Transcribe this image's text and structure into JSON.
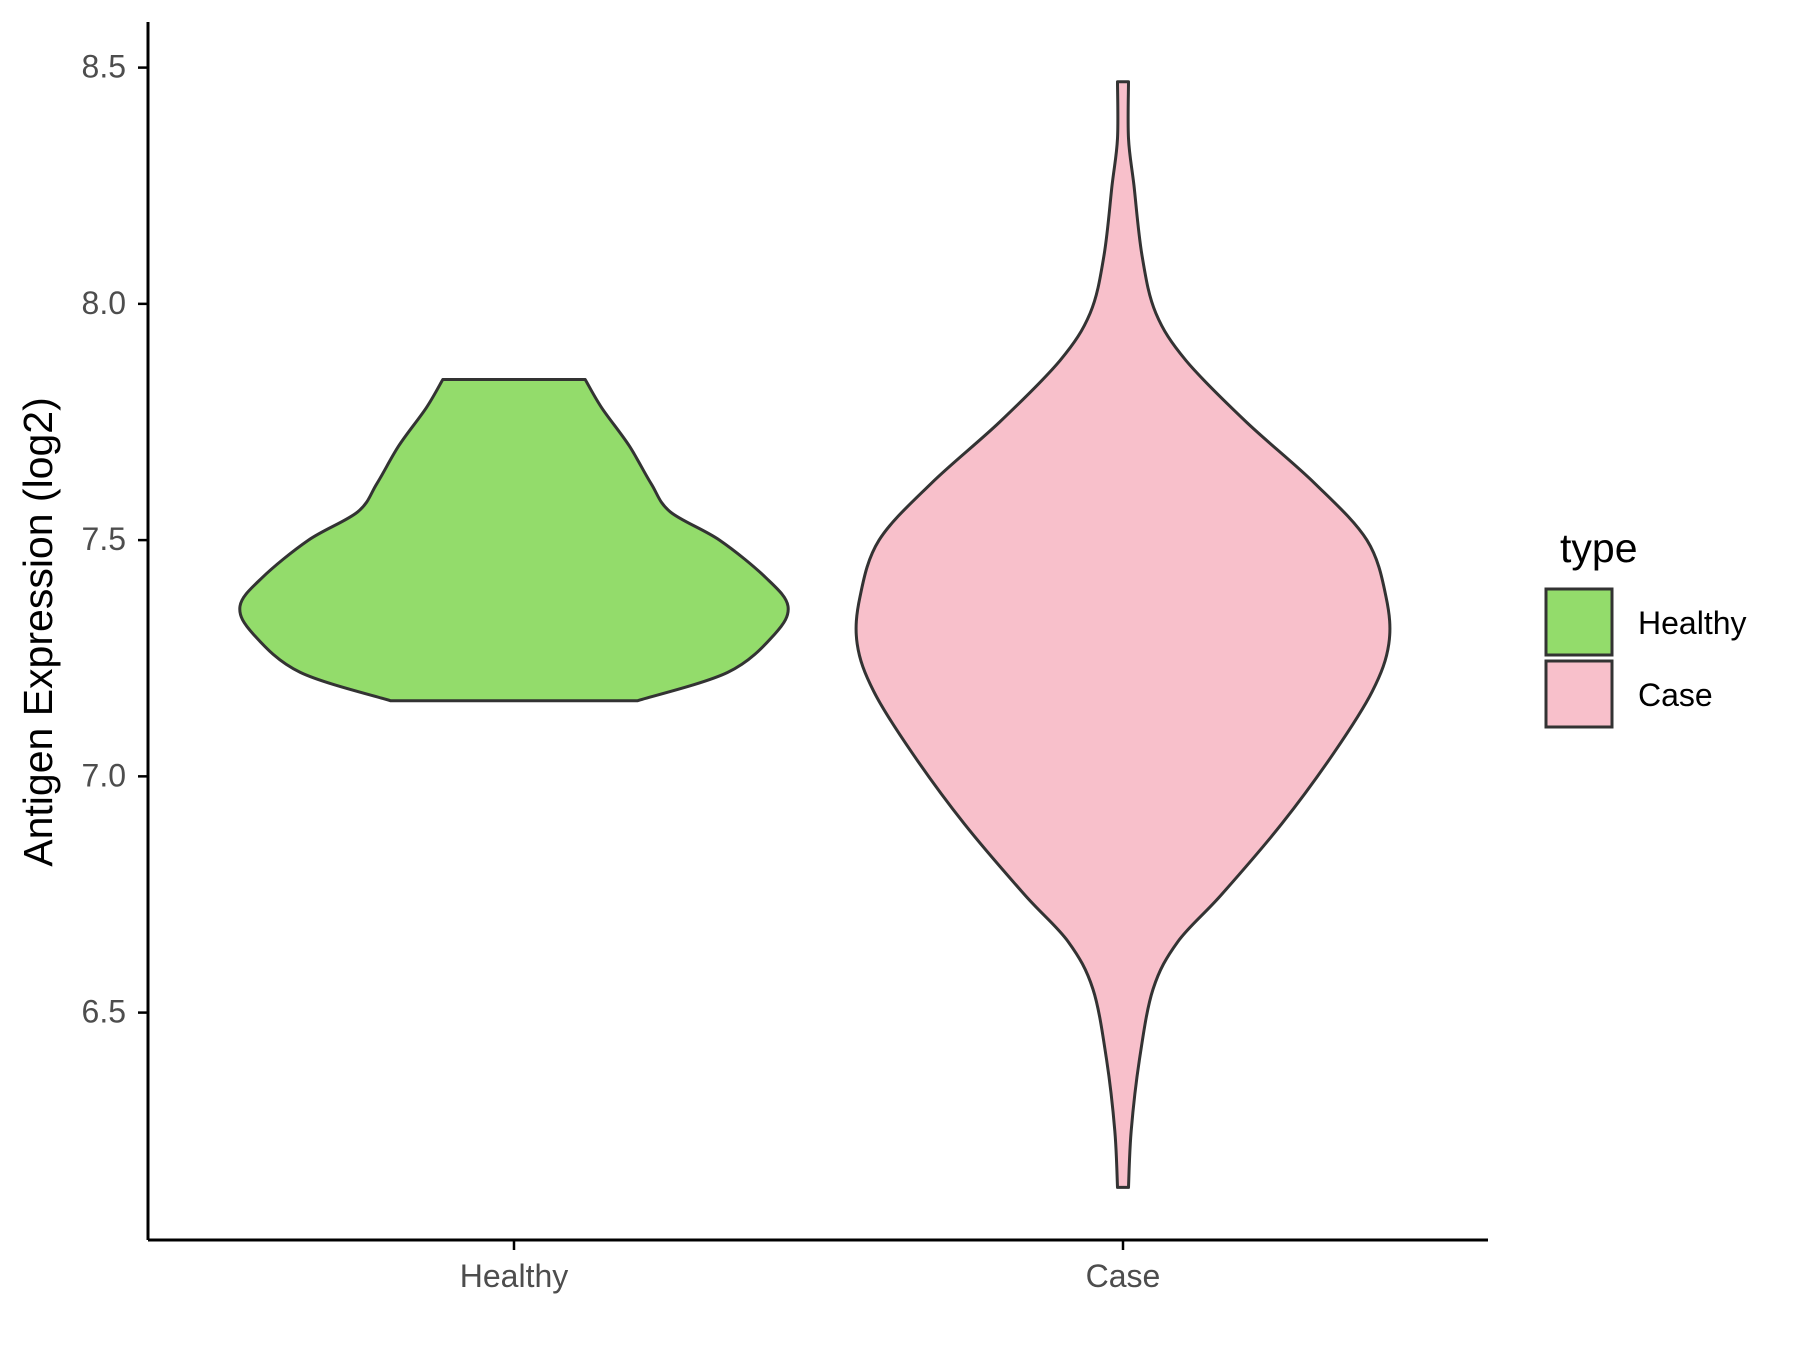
{
  "chart_data": {
    "type": "violin",
    "ylabel": "Antigen Expression (log2)",
    "xlabel": "",
    "ylim": [
      6.03,
      8.59
    ],
    "yticks": [
      6.5,
      7.0,
      7.5,
      8.0,
      8.5
    ],
    "ytick_labels": [
      "6.5",
      "7.0",
      "7.5",
      "8.0",
      "8.5"
    ],
    "categories": [
      "Healthy",
      "Case"
    ],
    "grid": false,
    "legend": {
      "title": "type",
      "position": "right",
      "items": [
        "Healthy",
        "Case"
      ]
    },
    "series": [
      {
        "name": "Healthy",
        "color": "#93dc6b",
        "min": 7.16,
        "max": 7.84,
        "density_profile": [
          [
            7.16,
            0.45
          ],
          [
            7.22,
            0.78
          ],
          [
            7.3,
            0.95
          ],
          [
            7.36,
            1.0
          ],
          [
            7.42,
            0.92
          ],
          [
            7.5,
            0.75
          ],
          [
            7.56,
            0.57
          ],
          [
            7.62,
            0.5
          ],
          [
            7.7,
            0.42
          ],
          [
            7.78,
            0.32
          ],
          [
            7.84,
            0.26
          ]
        ]
      },
      {
        "name": "Case",
        "color": "#f8c0cb",
        "min": 6.13,
        "max": 8.47,
        "density_profile": [
          [
            6.13,
            0.02
          ],
          [
            6.25,
            0.03
          ],
          [
            6.4,
            0.06
          ],
          [
            6.55,
            0.11
          ],
          [
            6.65,
            0.2
          ],
          [
            6.75,
            0.36
          ],
          [
            6.9,
            0.58
          ],
          [
            7.05,
            0.77
          ],
          [
            7.18,
            0.91
          ],
          [
            7.28,
            0.97
          ],
          [
            7.38,
            0.96
          ],
          [
            7.5,
            0.89
          ],
          [
            7.62,
            0.7
          ],
          [
            7.75,
            0.45
          ],
          [
            7.88,
            0.23
          ],
          [
            7.98,
            0.12
          ],
          [
            8.1,
            0.07
          ],
          [
            8.25,
            0.04
          ],
          [
            8.35,
            0.02
          ],
          [
            8.47,
            0.02
          ]
        ]
      }
    ]
  }
}
